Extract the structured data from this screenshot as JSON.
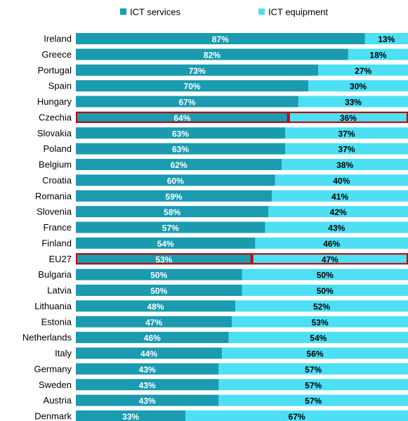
{
  "chart_data": {
    "type": "stacked-bar-horizontal",
    "categories": [
      "Ireland",
      "Greece",
      "Portugal",
      "Spain",
      "Hungary",
      "Czechia",
      "Slovakia",
      "Poland",
      "Belgium",
      "Croatia",
      "Romania",
      "Slovenia",
      "France",
      "Finland",
      "EU27",
      "Bulgaria",
      "Latvia",
      "Lithuania",
      "Estonia",
      "Netherlands",
      "Italy",
      "Germany",
      "Sweden",
      "Austria",
      "Denmark"
    ],
    "series": [
      {
        "name": "ICT services",
        "color": "#1a9bb0",
        "values": [
          87,
          82,
          73,
          70,
          67,
          64,
          63,
          63,
          62,
          60,
          59,
          58,
          57,
          54,
          53,
          50,
          50,
          48,
          47,
          46,
          44,
          43,
          43,
          43,
          33
        ],
        "value_labels": [
          "87%",
          "82%",
          "73%",
          "70%",
          "67%",
          "64%",
          "63%",
          "63%",
          "62%",
          "60%",
          "59%",
          "58%",
          "57%",
          "54%",
          "53%",
          "50%",
          "50%",
          "48%",
          "47%",
          "46%",
          "44%",
          "43%",
          "43%",
          "43%",
          "33%"
        ]
      },
      {
        "name": "ICT equipment",
        "color": "#4ddff3",
        "values": [
          13,
          18,
          27,
          30,
          33,
          36,
          37,
          37,
          38,
          40,
          41,
          42,
          43,
          46,
          47,
          50,
          50,
          52,
          53,
          54,
          56,
          57,
          57,
          57,
          67
        ],
        "value_labels": [
          "13%",
          "18%",
          "27%",
          "30%",
          "33%",
          "36%",
          "37%",
          "37%",
          "38%",
          "40%",
          "41%",
          "42%",
          "43%",
          "46%",
          "47%",
          "50%",
          "50%",
          "52%",
          "53%",
          "54%",
          "56%",
          "57%",
          "57%",
          "57%",
          "67%"
        ]
      }
    ],
    "xlim": [
      0,
      100
    ],
    "highlight": [
      "Czechia",
      "EU27"
    ],
    "highlight_color": "#c00000",
    "legend": "top"
  }
}
